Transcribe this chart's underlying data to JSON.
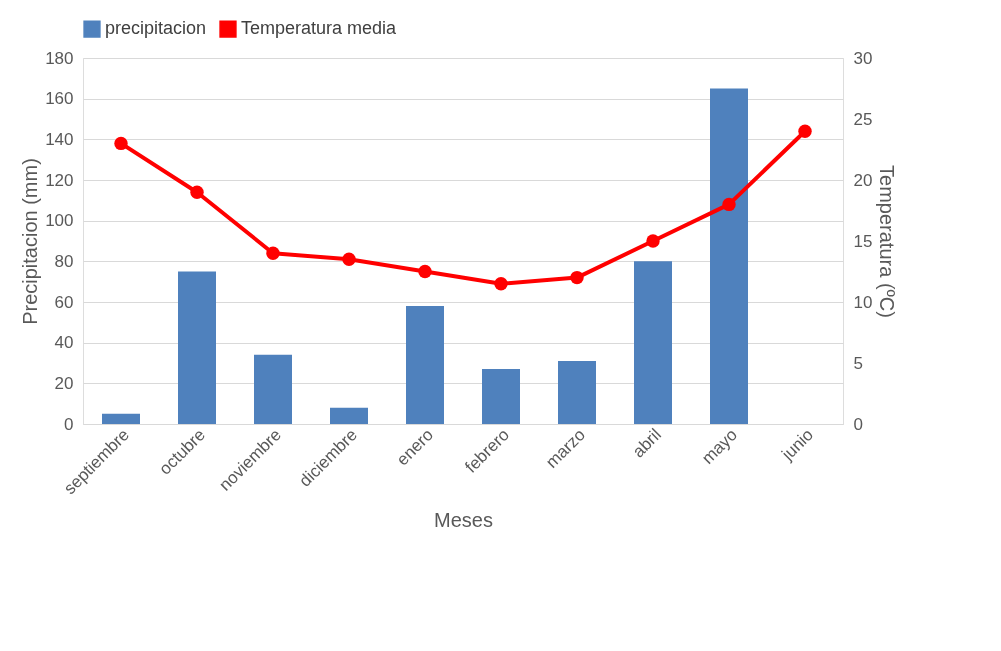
{
  "chart_data": {
    "type": "bar",
    "categories": [
      "septiembre",
      "octubre",
      "noviembre",
      "diciembre",
      "enero",
      "febrero",
      "marzo",
      "abril",
      "mayo",
      "junio"
    ],
    "series": [
      {
        "name": "precipitacion",
        "color": "#4f81bd",
        "values": [
          5,
          75,
          34,
          8,
          58,
          27,
          31,
          80,
          165,
          0
        ]
      },
      {
        "name": "Temperatura media",
        "type": "line",
        "axis": "y2",
        "color": "#ff0000",
        "marker": "circle",
        "values": [
          23,
          19,
          14,
          13.5,
          12.5,
          11.5,
          12,
          15,
          18,
          24
        ]
      }
    ],
    "xlabel": "Meses",
    "ylabel": "Precipitacion (mm)",
    "y2label": "Temperatura (ºC)",
    "ylim": [
      0,
      180
    ],
    "yticks": [
      0,
      20,
      40,
      60,
      80,
      100,
      120,
      140,
      160,
      180
    ],
    "y2lim": [
      0,
      30
    ],
    "y2ticks": [
      0,
      5,
      10,
      15,
      20,
      25,
      30
    ],
    "grid": "y",
    "legend": "top"
  }
}
